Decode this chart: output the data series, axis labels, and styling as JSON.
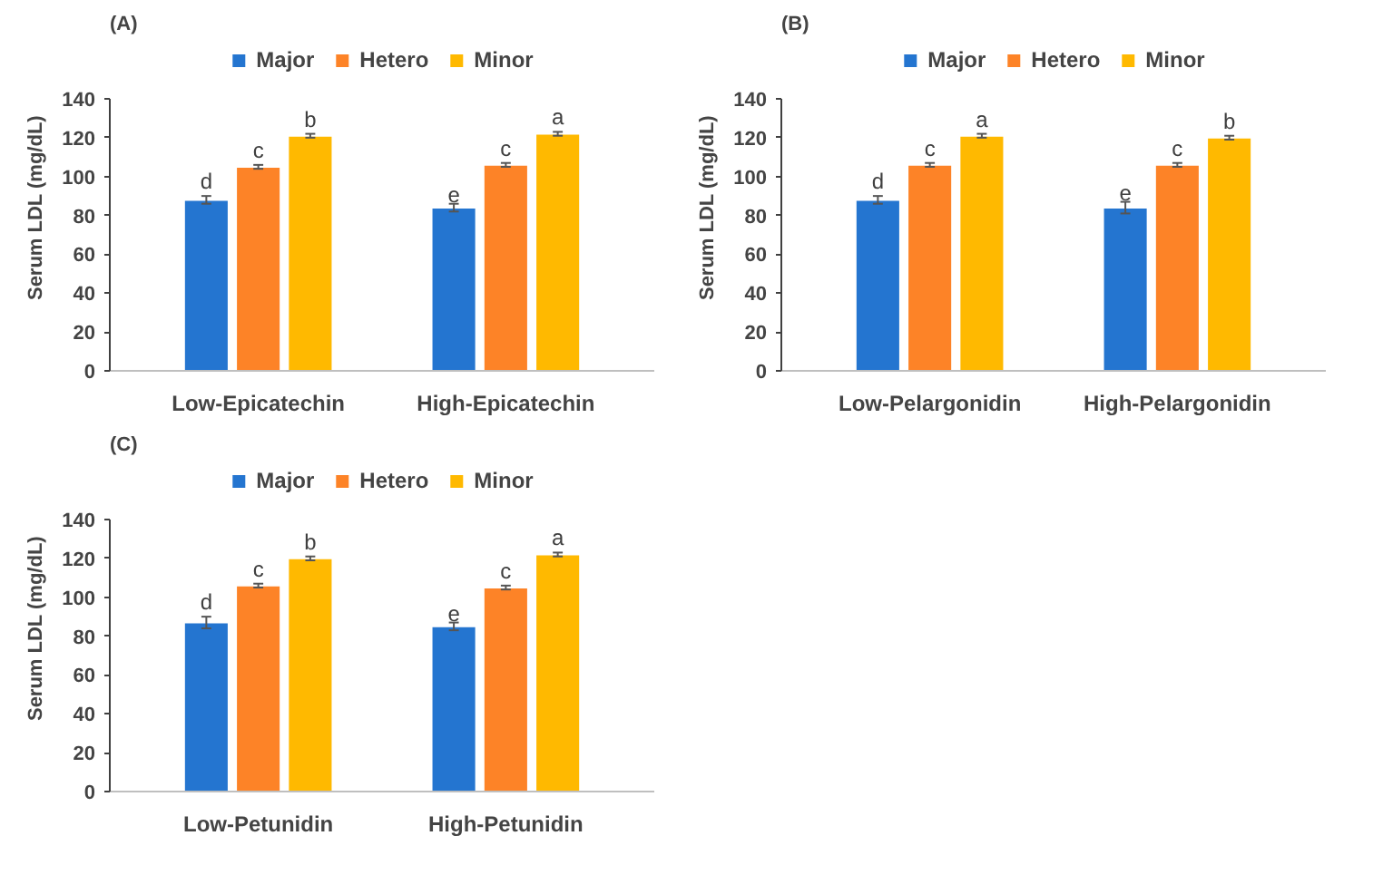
{
  "chart_data": [
    {
      "type": "bar",
      "title": "(A)",
      "ylabel": "Serum LDL (mg/dL)",
      "categories": [
        "Low-Epicatechin",
        "High-Epicatechin"
      ],
      "ylim": [
        0,
        140
      ],
      "yticks": [
        0,
        20,
        40,
        60,
        80,
        100,
        120,
        140
      ],
      "grid": false,
      "legend": "top",
      "series": [
        {
          "name": "Major",
          "color": "#2475d0",
          "values": [
            88,
            84
          ],
          "errors": [
            2,
            2
          ],
          "value_labels": [
            "d",
            "e"
          ]
        },
        {
          "name": "Hetero",
          "color": "#fd8327",
          "values": [
            105,
            106
          ],
          "errors": [
            1,
            1
          ],
          "value_labels": [
            "c",
            "c"
          ]
        },
        {
          "name": "Minor",
          "color": "#ffb900",
          "values": [
            121,
            122
          ],
          "errors": [
            1,
            1
          ],
          "value_labels": [
            "b",
            "a"
          ]
        }
      ]
    },
    {
      "type": "bar",
      "title": "(B)",
      "ylabel": "Serum LDL (mg/dL)",
      "categories": [
        "Low-Pelargonidin",
        "High-Pelargonidin"
      ],
      "ylim": [
        0,
        140
      ],
      "yticks": [
        0,
        20,
        40,
        60,
        80,
        100,
        120,
        140
      ],
      "grid": false,
      "legend": "top",
      "series": [
        {
          "name": "Major",
          "color": "#2475d0",
          "values": [
            88,
            84
          ],
          "errors": [
            2,
            3
          ],
          "value_labels": [
            "d",
            "e"
          ]
        },
        {
          "name": "Hetero",
          "color": "#fd8327",
          "values": [
            106,
            106
          ],
          "errors": [
            1,
            1
          ],
          "value_labels": [
            "c",
            "c"
          ]
        },
        {
          "name": "Minor",
          "color": "#ffb900",
          "values": [
            121,
            120
          ],
          "errors": [
            1,
            1
          ],
          "value_labels": [
            "a",
            "b"
          ]
        }
      ]
    },
    {
      "type": "bar",
      "title": "(C)",
      "ylabel": "Serum LDL (mg/dL)",
      "categories": [
        "Low-Petunidin",
        "High-Petunidin"
      ],
      "ylim": [
        0,
        140
      ],
      "yticks": [
        0,
        20,
        40,
        60,
        80,
        100,
        120,
        140
      ],
      "grid": false,
      "legend": "top",
      "series": [
        {
          "name": "Major",
          "color": "#2475d0",
          "values": [
            87,
            85
          ],
          "errors": [
            3,
            2
          ],
          "value_labels": [
            "d",
            "e"
          ]
        },
        {
          "name": "Hetero",
          "color": "#fd8327",
          "values": [
            106,
            105
          ],
          "errors": [
            1,
            1
          ],
          "value_labels": [
            "c",
            "c"
          ]
        },
        {
          "name": "Minor",
          "color": "#ffb900",
          "values": [
            120,
            122
          ],
          "errors": [
            1,
            1
          ],
          "value_labels": [
            "b",
            "a"
          ]
        }
      ]
    }
  ]
}
